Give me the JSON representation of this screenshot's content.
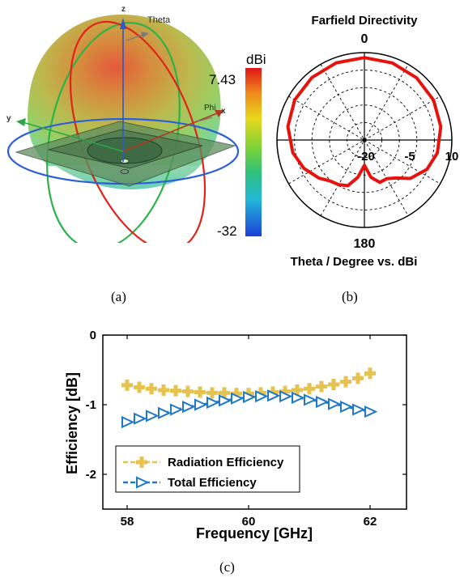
{
  "panel_a": {
    "caption": "(a)",
    "axis_labels": {
      "z": "z",
      "y": "y",
      "x": "x",
      "theta": "Theta",
      "phi": "Phi"
    },
    "colorbar": {
      "unit": "dBi",
      "max_label": "7.43",
      "min_label": "-32"
    },
    "colors": {
      "red": "#e2231a",
      "green": "#2cb34a",
      "blue": "#2b5fd9"
    }
  },
  "panel_b": {
    "caption": "(b)",
    "title": "Farfield Directivity",
    "top_label": "0",
    "bottom_label": "180",
    "bottom_title": "Theta / Degree vs. dBi",
    "radial_labels": [
      "-20",
      "-5",
      "10"
    ],
    "colors": {
      "pattern": "#e8120c"
    }
  },
  "chart_data": [
    {
      "type": "line",
      "panel": "c",
      "caption": "(c)",
      "xlabel": "Frequency [GHz]",
      "ylabel": "Efficiency [dB]",
      "xlim": [
        57.6,
        62.6
      ],
      "ylim": [
        -2.5,
        0
      ],
      "xticks": [
        "58",
        "60",
        "62"
      ],
      "yticks": [
        "0",
        "-1",
        "-2"
      ],
      "grid": false,
      "legend": "bottom-left",
      "x": [
        58.0,
        58.2,
        58.4,
        58.6,
        58.8,
        59.0,
        59.2,
        59.4,
        59.6,
        59.8,
        60.0,
        60.2,
        60.4,
        60.6,
        60.8,
        61.0,
        61.2,
        61.4,
        61.6,
        61.8,
        62.0
      ],
      "series": [
        {
          "name": "Radiation Efficiency",
          "color": "#e6c24e",
          "marker": "plus",
          "values": [
            -0.72,
            -0.75,
            -0.77,
            -0.79,
            -0.8,
            -0.81,
            -0.82,
            -0.83,
            -0.83,
            -0.84,
            -0.84,
            -0.83,
            -0.82,
            -0.81,
            -0.79,
            -0.77,
            -0.74,
            -0.71,
            -0.67,
            -0.62,
            -0.55
          ]
        },
        {
          "name": "Total Efficiency",
          "color": "#1f78c8",
          "marker": "triangle-right",
          "values": [
            -1.25,
            -1.2,
            -1.16,
            -1.12,
            -1.07,
            -1.03,
            -1.0,
            -0.97,
            -0.94,
            -0.91,
            -0.89,
            -0.88,
            -0.87,
            -0.88,
            -0.9,
            -0.93,
            -0.96,
            -0.99,
            -1.03,
            -1.07,
            -1.1
          ]
        }
      ]
    },
    {
      "type": "polar",
      "panel": "b",
      "title": "Farfield Directivity",
      "rlim": [
        -35,
        10
      ],
      "theta_deg": [
        0,
        20,
        40,
        60,
        80,
        100,
        115,
        130,
        140,
        150,
        160,
        170,
        180,
        190,
        200,
        210,
        220,
        230,
        245,
        260,
        280,
        300,
        320,
        340,
        360
      ],
      "r_dbi": [
        7.4,
        7.2,
        6.8,
        6.1,
        4.9,
        3.1,
        0.6,
        -4.2,
        -9.5,
        -12.0,
        -11.8,
        -15.5,
        -22.0,
        -15.5,
        -10.0,
        -8.5,
        -7.5,
        -4.5,
        -0.6,
        2.4,
        5.0,
        6.4,
        7.0,
        7.3,
        7.4
      ]
    }
  ]
}
